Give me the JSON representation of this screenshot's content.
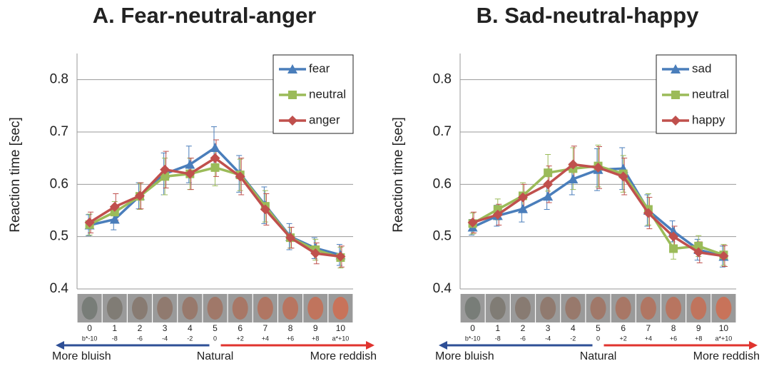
{
  "chart_data": [
    {
      "type": "line",
      "title": "A. Fear-neutral-anger",
      "ylabel": "Reaction time [sec]",
      "categories": [
        "0",
        "1",
        "2",
        "3",
        "4",
        "5",
        "6",
        "7",
        "8",
        "9",
        "10"
      ],
      "sublabels": [
        "b*-10",
        "-8",
        "-6",
        "-4",
        "-2",
        "0",
        "+2",
        "+4",
        "+6",
        "+8",
        "a*+10"
      ],
      "arrow_labels": [
        "More bluish",
        "Natural",
        "More reddish"
      ],
      "ylim": [
        0.4,
        0.85
      ],
      "yticks": [
        0.4,
        0.5,
        0.6,
        0.7,
        0.8
      ],
      "grid": true,
      "legend": "upper right",
      "series": [
        {
          "name": "fear",
          "color": "#4a7ebb",
          "marker": "triangle",
          "values": [
            0.522,
            0.533,
            0.578,
            0.62,
            0.638,
            0.67,
            0.62,
            0.56,
            0.5,
            0.478,
            0.465
          ],
          "errors": [
            0.02,
            0.02,
            0.025,
            0.04,
            0.035,
            0.04,
            0.035,
            0.035,
            0.025,
            0.02,
            0.02
          ]
        },
        {
          "name": "neutral",
          "color": "#9bbb59",
          "marker": "square",
          "values": [
            0.523,
            0.547,
            0.577,
            0.615,
            0.62,
            0.632,
            0.618,
            0.558,
            0.498,
            0.475,
            0.46
          ],
          "errors": [
            0.02,
            0.02,
            0.025,
            0.035,
            0.03,
            0.035,
            0.03,
            0.03,
            0.02,
            0.02,
            0.02
          ]
        },
        {
          "name": "anger",
          "color": "#c0504d",
          "marker": "diamond",
          "values": [
            0.527,
            0.557,
            0.578,
            0.628,
            0.62,
            0.65,
            0.615,
            0.552,
            0.498,
            0.468,
            0.462
          ],
          "errors": [
            0.02,
            0.025,
            0.025,
            0.035,
            0.03,
            0.035,
            0.035,
            0.03,
            0.02,
            0.02,
            0.02
          ]
        }
      ]
    },
    {
      "type": "line",
      "title": "B. Sad-neutral-happy",
      "ylabel": "Reaction time [sec]",
      "categories": [
        "0",
        "1",
        "2",
        "3",
        "4",
        "5",
        "6",
        "7",
        "8",
        "9",
        "10"
      ],
      "sublabels": [
        "b*-10",
        "-8",
        "-6",
        "-4",
        "-2",
        "0",
        "+2",
        "+4",
        "+6",
        "+8",
        "a*+10"
      ],
      "arrow_labels": [
        "More bluish",
        "Natural",
        "More reddish"
      ],
      "ylim": [
        0.4,
        0.85
      ],
      "yticks": [
        0.4,
        0.5,
        0.6,
        0.7,
        0.8
      ],
      "grid": true,
      "legend": "upper right",
      "series": [
        {
          "name": "sad",
          "color": "#4a7ebb",
          "marker": "triangle",
          "values": [
            0.518,
            0.54,
            0.553,
            0.577,
            0.61,
            0.628,
            0.63,
            0.55,
            0.51,
            0.475,
            0.462
          ],
          "errors": [
            0.015,
            0.02,
            0.025,
            0.025,
            0.03,
            0.04,
            0.04,
            0.03,
            0.02,
            0.02,
            0.02
          ]
        },
        {
          "name": "neutral",
          "color": "#9bbb59",
          "marker": "square",
          "values": [
            0.525,
            0.552,
            0.578,
            0.622,
            0.63,
            0.635,
            0.62,
            0.552,
            0.477,
            0.482,
            0.465
          ],
          "errors": [
            0.02,
            0.02,
            0.025,
            0.035,
            0.04,
            0.04,
            0.035,
            0.03,
            0.02,
            0.02,
            0.02
          ]
        },
        {
          "name": "happy",
          "color": "#c0504d",
          "marker": "diamond",
          "values": [
            0.527,
            0.542,
            0.575,
            0.6,
            0.638,
            0.632,
            0.615,
            0.545,
            0.5,
            0.47,
            0.463
          ],
          "errors": [
            0.02,
            0.02,
            0.025,
            0.035,
            0.035,
            0.04,
            0.035,
            0.03,
            0.02,
            0.02,
            0.02
          ]
        }
      ]
    }
  ]
}
